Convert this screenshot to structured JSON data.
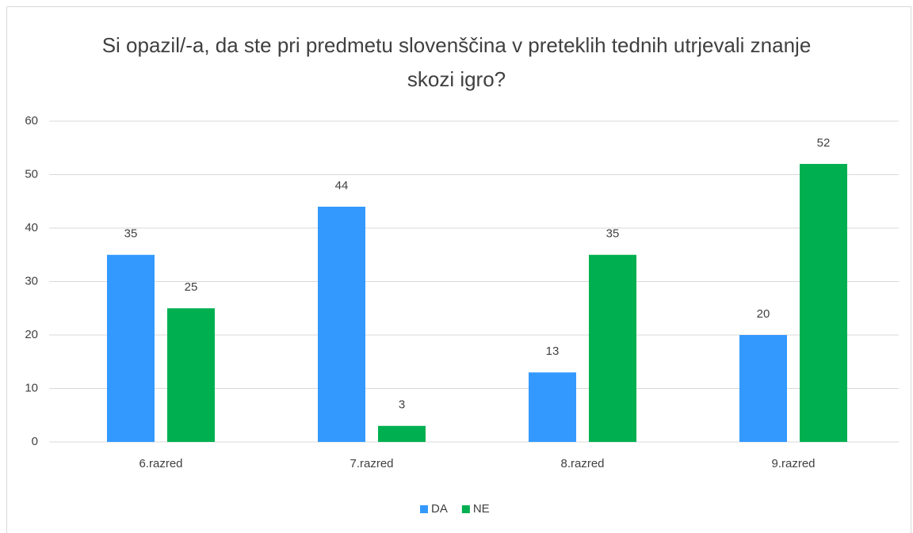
{
  "chart_data": {
    "type": "bar",
    "title": "Si opazil/-a, da ste pri predmetu slovenščina v preteklih tednih utrjevali znanje skozi igro?",
    "categories": [
      "6.razred",
      "7.razred",
      "8.razred",
      "9.razred"
    ],
    "series": [
      {
        "name": "DA",
        "color": "#3399ff",
        "values": [
          35,
          44,
          13,
          20
        ]
      },
      {
        "name": "NE",
        "color": "#00b050",
        "values": [
          25,
          3,
          35,
          52
        ]
      }
    ],
    "ylim": [
      0,
      60
    ],
    "yticks": [
      0,
      10,
      20,
      30,
      40,
      50,
      60
    ],
    "grid": true,
    "legend": "bottom"
  }
}
